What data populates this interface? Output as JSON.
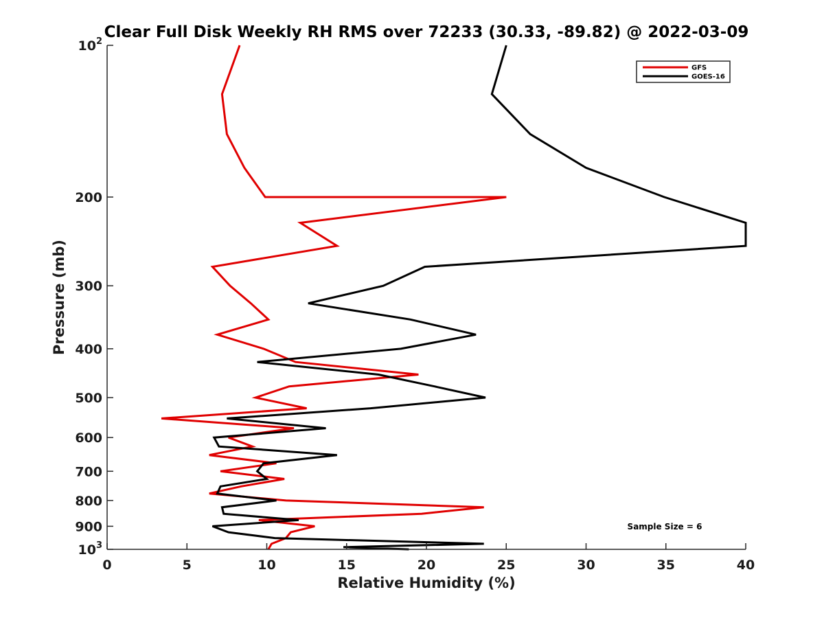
{
  "chart_data": {
    "type": "line",
    "title": "Clear Full Disk Weekly RH RMS over 72233 (30.33, -89.82) @ 2022-03-09",
    "xlabel": "Relative Humidity (%)",
    "ylabel": "Pressure (mb)",
    "xlim": [
      0,
      40
    ],
    "ylim": [
      100,
      1000
    ],
    "y_scale": "log",
    "y_reversed": true,
    "x_ticks": [
      "0",
      "5",
      "10",
      "15",
      "20",
      "25",
      "30",
      "35",
      "40"
    ],
    "y_ticks": [
      {
        "value": 100,
        "base": "10",
        "exp": "2"
      },
      {
        "value": 200,
        "label": "200"
      },
      {
        "value": 300,
        "label": "300"
      },
      {
        "value": 400,
        "label": "400"
      },
      {
        "value": 500,
        "label": "500"
      },
      {
        "value": 600,
        "label": "600"
      },
      {
        "value": 700,
        "label": "700"
      },
      {
        "value": 800,
        "label": "800"
      },
      {
        "value": 900,
        "label": "900"
      },
      {
        "value": 1000,
        "base": "10",
        "exp": "3"
      }
    ],
    "grid": false,
    "legend_position": "top-right",
    "series": [
      {
        "name": "GFS",
        "color": "#e00000",
        "points": [
          [
            8.3,
            100
          ],
          [
            7.2,
            125
          ],
          [
            7.5,
            150
          ],
          [
            8.6,
            175
          ],
          [
            9.9,
            200
          ],
          [
            25.0,
            200
          ],
          [
            12.1,
            225
          ],
          [
            14.4,
            250
          ],
          [
            6.6,
            275
          ],
          [
            7.7,
            300
          ],
          [
            9.0,
            325
          ],
          [
            10.1,
            350
          ],
          [
            6.9,
            375
          ],
          [
            9.8,
            400
          ],
          [
            11.8,
            425
          ],
          [
            19.5,
            450
          ],
          [
            11.4,
            475
          ],
          [
            9.3,
            500
          ],
          [
            12.5,
            525
          ],
          [
            3.4,
            550
          ],
          [
            11.7,
            575
          ],
          [
            7.6,
            600
          ],
          [
            9.1,
            625
          ],
          [
            6.4,
            650
          ],
          [
            10.6,
            675
          ],
          [
            7.1,
            700
          ],
          [
            11.1,
            725
          ],
          [
            8.4,
            750
          ],
          [
            6.4,
            775
          ],
          [
            11.2,
            800
          ],
          [
            23.6,
            825
          ],
          [
            19.7,
            850
          ],
          [
            9.5,
            875
          ],
          [
            13.0,
            900
          ],
          [
            11.5,
            925
          ],
          [
            11.2,
            950
          ],
          [
            10.3,
            975
          ],
          [
            10.1,
            1000
          ]
        ]
      },
      {
        "name": "GOES-16",
        "color": "#000000",
        "points": [
          [
            25.0,
            100
          ],
          [
            24.1,
            125
          ],
          [
            26.5,
            150
          ],
          [
            30.0,
            175
          ],
          [
            34.9,
            200
          ],
          [
            40.0,
            225
          ],
          [
            40.0,
            250
          ],
          [
            19.9,
            275
          ],
          [
            17.3,
            300
          ],
          [
            12.6,
            325
          ],
          [
            19.0,
            350
          ],
          [
            23.1,
            375
          ],
          [
            18.4,
            400
          ],
          [
            9.4,
            425
          ],
          [
            17.0,
            450
          ],
          [
            20.5,
            475
          ],
          [
            23.7,
            500
          ],
          [
            16.5,
            525
          ],
          [
            7.5,
            550
          ],
          [
            13.7,
            575
          ],
          [
            6.7,
            600
          ],
          [
            7.0,
            625
          ],
          [
            14.4,
            650
          ],
          [
            9.8,
            675
          ],
          [
            9.4,
            700
          ],
          [
            10.0,
            725
          ],
          [
            7.1,
            750
          ],
          [
            6.9,
            775
          ],
          [
            10.6,
            800
          ],
          [
            7.2,
            825
          ],
          [
            7.3,
            850
          ],
          [
            12.0,
            875
          ],
          [
            6.6,
            900
          ],
          [
            7.6,
            925
          ],
          [
            10.5,
            950
          ],
          [
            23.6,
            975
          ],
          [
            14.8,
            990
          ],
          [
            18.9,
            1000
          ]
        ]
      }
    ],
    "annotation": "Sample Size = 6"
  }
}
